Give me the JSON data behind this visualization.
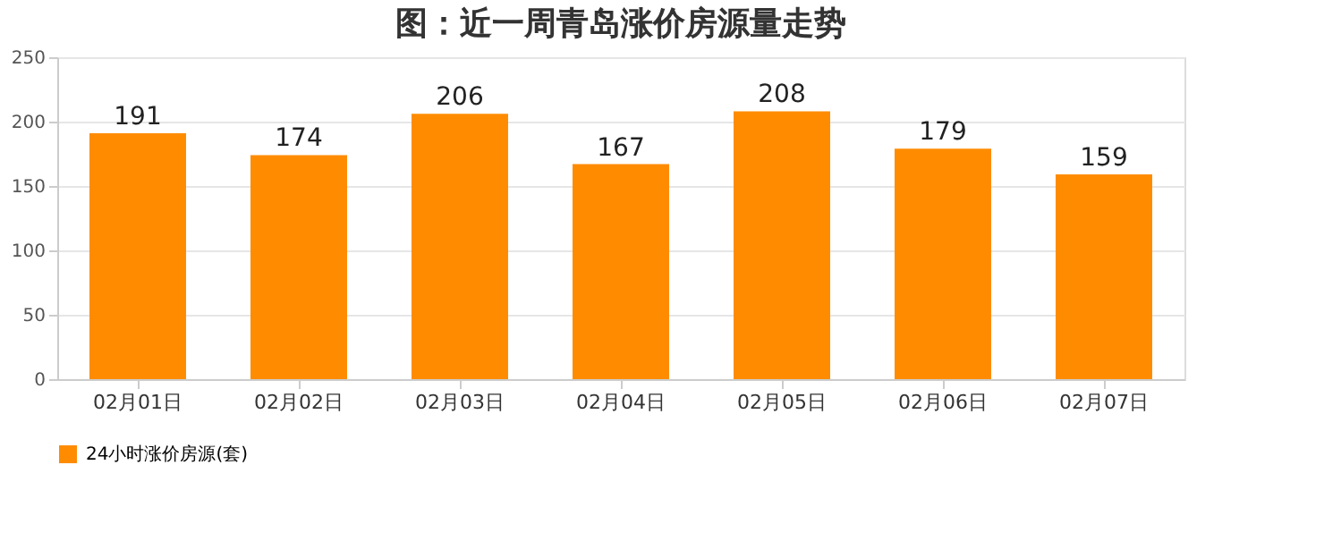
{
  "chart_data": {
    "type": "bar",
    "title": "图：近一周青岛涨价房源量走势",
    "categories": [
      "02月01日",
      "02月02日",
      "02月03日",
      "02月04日",
      "02月05日",
      "02月06日",
      "02月07日"
    ],
    "series": [
      {
        "name": "24小时涨价房源(套)",
        "color": "#ff8c00",
        "values": [
          191,
          174,
          206,
          167,
          208,
          179,
          159
        ]
      }
    ],
    "ylim": [
      0,
      250
    ],
    "yticks": [
      0,
      50,
      100,
      150,
      200,
      250
    ],
    "grid": "y",
    "legend": "bottom",
    "data_labels": true
  }
}
